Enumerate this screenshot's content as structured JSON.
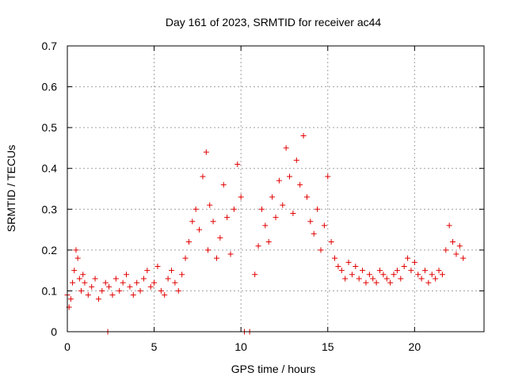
{
  "chart_data": {
    "type": "scatter",
    "title": "Day 161 of 2023, SRMTID for receiver ac44",
    "xlabel": "GPS time / hours",
    "ylabel": "SRMTID / TECUs",
    "xlim": [
      0,
      24
    ],
    "ylim": [
      0,
      0.7
    ],
    "xticks": [
      0,
      5,
      10,
      15,
      20
    ],
    "xtick_labels": [
      "0",
      "5",
      "10",
      "15",
      "20"
    ],
    "yticks": [
      0,
      0.1,
      0.2,
      0.3,
      0.4,
      0.5,
      0.6,
      0.7
    ],
    "ytick_labels": [
      "0",
      "0.1",
      "0.2",
      "0.3",
      "0.4",
      "0.5",
      "0.6",
      "0.7"
    ],
    "grid": true,
    "marker": "plus",
    "series": [
      {
        "name": "SRMTID",
        "color": "#e00000",
        "x": [
          0.0,
          0.1,
          0.2,
          0.3,
          0.4,
          0.5,
          0.6,
          0.7,
          0.8,
          0.9,
          1.0,
          1.2,
          1.4,
          1.6,
          1.8,
          2.0,
          2.2,
          2.33,
          2.4,
          2.6,
          2.8,
          3.0,
          3.2,
          3.4,
          3.6,
          3.8,
          4.0,
          4.2,
          4.4,
          4.6,
          4.8,
          5.0,
          5.2,
          5.4,
          5.6,
          5.8,
          6.0,
          6.2,
          6.4,
          6.6,
          6.8,
          7.0,
          7.2,
          7.4,
          7.6,
          7.8,
          8.0,
          8.1,
          8.2,
          8.4,
          8.6,
          8.8,
          9.0,
          9.2,
          9.4,
          9.6,
          9.8,
          10.0,
          10.2,
          10.5,
          10.8,
          11.0,
          11.2,
          11.4,
          11.6,
          11.8,
          12.0,
          12.2,
          12.4,
          12.6,
          12.8,
          13.0,
          13.2,
          13.4,
          13.6,
          13.8,
          14.0,
          14.2,
          14.4,
          14.6,
          14.8,
          15.0,
          15.2,
          15.4,
          15.6,
          15.8,
          16.0,
          16.2,
          16.4,
          16.6,
          16.8,
          17.0,
          17.2,
          17.4,
          17.6,
          17.8,
          18.0,
          18.2,
          18.4,
          18.6,
          18.8,
          19.0,
          19.2,
          19.4,
          19.6,
          19.8,
          20.0,
          20.2,
          20.4,
          20.6,
          20.8,
          21.0,
          21.2,
          21.4,
          21.6,
          21.8,
          22.0,
          22.2,
          22.4,
          22.6,
          22.8
        ],
        "y": [
          0.09,
          0.06,
          0.08,
          0.12,
          0.15,
          0.2,
          0.18,
          0.13,
          0.1,
          0.14,
          0.12,
          0.09,
          0.11,
          0.13,
          0.08,
          0.1,
          0.12,
          0.0,
          0.11,
          0.09,
          0.13,
          0.1,
          0.12,
          0.14,
          0.11,
          0.09,
          0.12,
          0.1,
          0.13,
          0.15,
          0.11,
          0.12,
          0.16,
          0.1,
          0.09,
          0.13,
          0.15,
          0.12,
          0.1,
          0.14,
          0.18,
          0.22,
          0.27,
          0.3,
          0.25,
          0.38,
          0.44,
          0.2,
          0.31,
          0.27,
          0.18,
          0.23,
          0.36,
          0.28,
          0.19,
          0.3,
          0.41,
          0.33,
          0.0,
          0.0,
          0.14,
          0.21,
          0.3,
          0.26,
          0.22,
          0.33,
          0.28,
          0.37,
          0.31,
          0.45,
          0.38,
          0.29,
          0.42,
          0.36,
          0.48,
          0.33,
          0.27,
          0.24,
          0.3,
          0.2,
          0.26,
          0.38,
          0.22,
          0.18,
          0.16,
          0.15,
          0.13,
          0.17,
          0.14,
          0.16,
          0.13,
          0.15,
          0.12,
          0.14,
          0.13,
          0.12,
          0.15,
          0.14,
          0.13,
          0.12,
          0.14,
          0.15,
          0.13,
          0.16,
          0.18,
          0.15,
          0.17,
          0.14,
          0.13,
          0.15,
          0.12,
          0.14,
          0.13,
          0.15,
          0.14,
          0.2,
          0.26,
          0.22,
          0.19,
          0.21,
          0.18
        ]
      }
    ]
  }
}
